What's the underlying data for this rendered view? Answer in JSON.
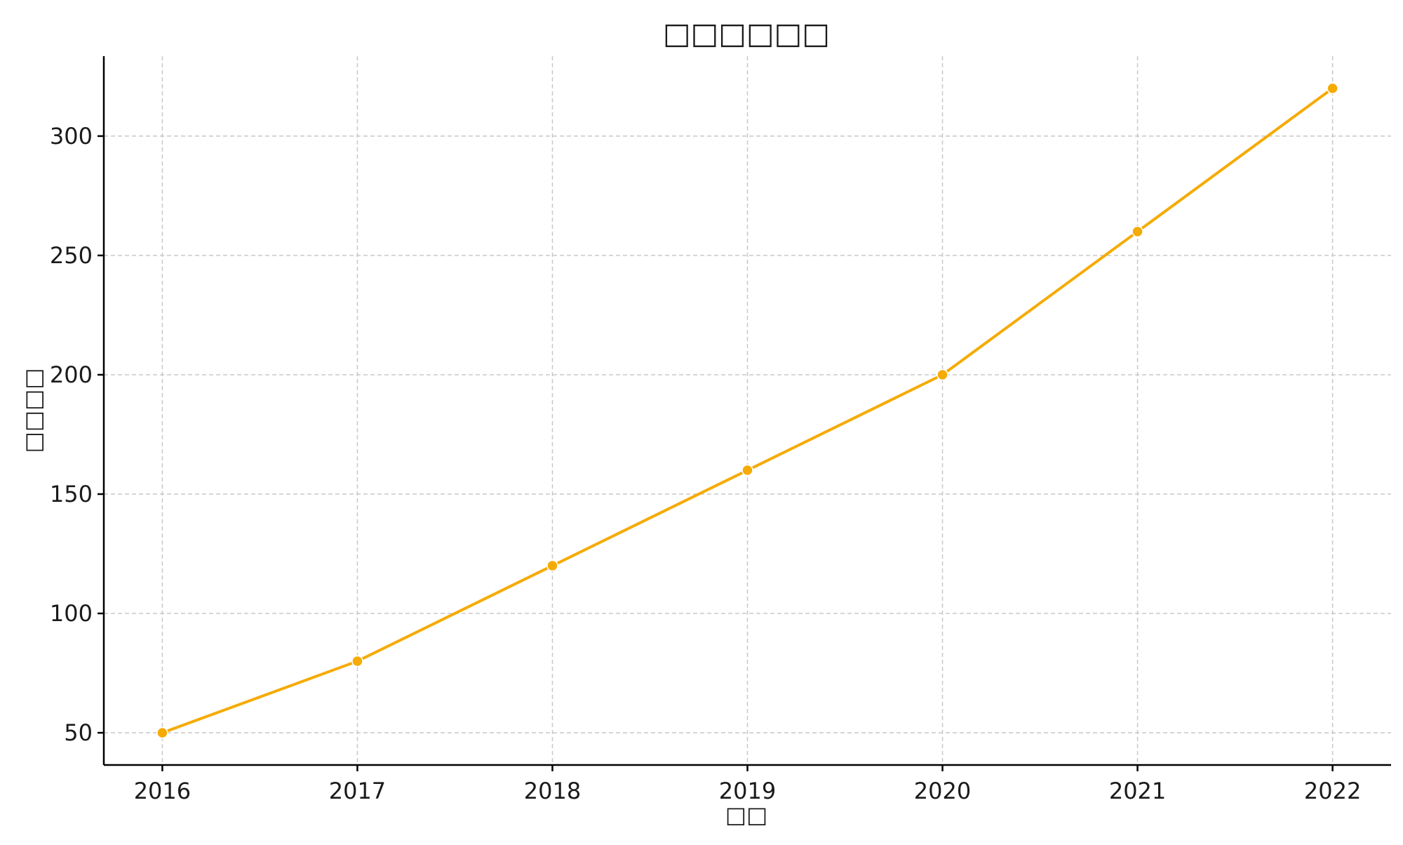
{
  "chart_data": {
    "type": "line",
    "title": "□□□□□□",
    "xlabel": "□□",
    "ylabel": "□□□□",
    "x": [
      2016,
      2017,
      2018,
      2019,
      2020,
      2021,
      2022
    ],
    "x_tick_labels": [
      "2016",
      "2017",
      "2018",
      "2019",
      "2020",
      "2021",
      "2022"
    ],
    "series": [
      {
        "values": [
          50,
          80,
          120,
          160,
          200,
          260,
          320
        ],
        "color": "#f5ab05",
        "marker": "circle"
      }
    ],
    "yticks": [
      50,
      100,
      150,
      200,
      250,
      300
    ],
    "y_tick_labels": [
      "50",
      "100",
      "150",
      "200",
      "250",
      "300"
    ],
    "xlim": [
      2015.7,
      2022.3
    ],
    "ylim": [
      36.5,
      333.5
    ],
    "grid": true,
    "legend": "none"
  }
}
